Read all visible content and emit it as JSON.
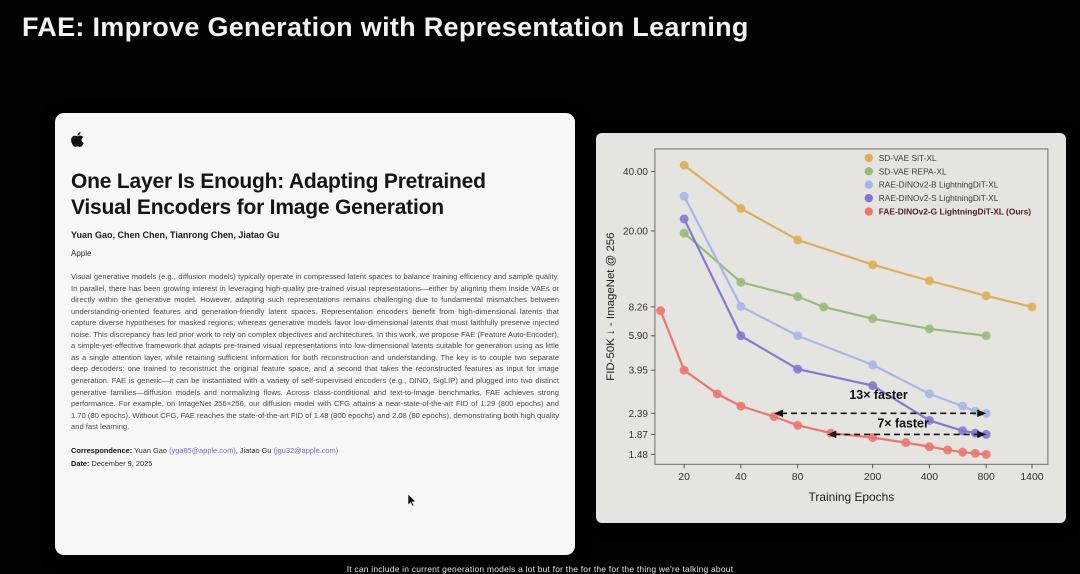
{
  "slide": {
    "title": "FAE: Improve Generation with Representation Learning",
    "caption": "It can include in current generation models a lot but for the for the for the thing we're talking about"
  },
  "paper": {
    "title": "One Layer Is Enough: Adapting Pretrained Visual Encoders for Image Generation",
    "authors": "Yuan Gao, Chen Chen, Tianrong Chen, Jiatao Gu",
    "affiliation": "Apple",
    "abstract": "Visual generative models (e.g., diffusion models) typically operate in compressed latent spaces to balance training efficiency and sample quality. In parallel, there has been growing interest in leveraging high-quality pre-trained visual representations—either by aligning them inside VAEs or directly within the generative model. However, adapting such representations remains challenging due to fundamental mismatches between understanding-oriented features and generation-friendly latent spaces. Representation encoders benefit from high-dimensional latents that capture diverse hypotheses for masked regions, whereas generative models favor low-dimensional latents that must faithfully preserve injected noise. This discrepancy has led prior work to rely on complex objectives and architectures. In this work, we propose FAE (Feature Auto-Encoder), a simple-yet-effective framework that adapts pre-trained visual representations into low-dimensional latents suitable for generation using as little as a single attention layer, while retaining sufficient information for both reconstruction and understanding. The key is to couple two separate deep decoders: one trained to reconstruct the original feature space, and a second that takes the reconstructed features as input for image generation. FAE is generic—it can be instantiated with a variety of self-supervised encoders (e.g., DINO, SigLIP) and plugged into two distinct generative families—diffusion models and normalizing flows. Across class-conditional and text-to-image benchmarks, FAE achieves strong performance. For example, on ImageNet 256×256, our diffusion model with CFG attains a near-state-of-the-art FID of 1.29 (800 epochs) and 1.70 (80 epochs). Without CFG, FAE reaches the state-of-the-art FID of 1.48 (800 epochs) and 2.08 (80 epochs), demonstrating both high quality and fast learning.",
    "correspondence_label": "Correspondence:",
    "correspondence_name1": " Yuan Gao ",
    "correspondence_email1": "(yga85@apple.com)",
    "correspondence_sep": ", ",
    "correspondence_name2": "Jiatao Gu ",
    "correspondence_email2": "(jgu32@apple.com)",
    "date_label": "Date:",
    "date_value": " December 9, 2025"
  },
  "chart_data": {
    "type": "line",
    "title": "",
    "xlabel": "Training Epochs",
    "ylabel": "FID-50K ↓ - ImageNet @ 256",
    "xscale": "log",
    "yscale": "log",
    "xlim": [
      14,
      1700
    ],
    "ylim": [
      1.32,
      52
    ],
    "xticks": [
      20,
      40,
      80,
      200,
      400,
      800,
      1400
    ],
    "xtick_labels": [
      "20",
      "40",
      "80",
      "200",
      "400",
      "800",
      "1400"
    ],
    "yticks": [
      40.0,
      20.0,
      8.26,
      5.9,
      3.95,
      2.39,
      1.87,
      1.48
    ],
    "ytick_labels": [
      "40.00",
      "20.00",
      "8.26",
      "5.90",
      "3.95",
      "2.39",
      "1.87",
      "1.48"
    ],
    "grid": false,
    "legend_position": "upper right",
    "series": [
      {
        "name": "SD-VAE SiT-XL",
        "color": "#ddab4d",
        "bold": false,
        "points": [
          [
            20,
            43
          ],
          [
            40,
            26
          ],
          [
            80,
            18
          ],
          [
            200,
            13.5
          ],
          [
            400,
            11.2
          ],
          [
            800,
            9.4
          ],
          [
            1400,
            8.26
          ]
        ]
      },
      {
        "name": "SD-VAE REPA-XL",
        "color": "#90b873",
        "bold": false,
        "points": [
          [
            20,
            19.5
          ],
          [
            40,
            11.0
          ],
          [
            80,
            9.3
          ],
          [
            110,
            8.26
          ],
          [
            200,
            7.2
          ],
          [
            400,
            6.4
          ],
          [
            800,
            5.9
          ]
        ]
      },
      {
        "name": "RAE-DINOv2-B LightningDiT-XL",
        "color": "#a2b4e8",
        "bold": false,
        "points": [
          [
            20,
            30
          ],
          [
            40,
            8.3
          ],
          [
            80,
            5.9
          ],
          [
            200,
            4.2
          ],
          [
            400,
            3.0
          ],
          [
            600,
            2.6
          ],
          [
            700,
            2.45
          ],
          [
            800,
            2.39
          ]
        ]
      },
      {
        "name": "RAE-DINOv2-S LightningDiT-XL",
        "color": "#7d6fd2",
        "bold": false,
        "points": [
          [
            20,
            23
          ],
          [
            40,
            5.9
          ],
          [
            80,
            4.0
          ],
          [
            200,
            3.3
          ],
          [
            400,
            2.2
          ],
          [
            600,
            1.95
          ],
          [
            700,
            1.9
          ],
          [
            800,
            1.87
          ]
        ]
      },
      {
        "name": "FAE-DINOv2-G LightningDiT-XL (Ours)",
        "color": "#ea6e64",
        "bold": true,
        "points": [
          [
            15,
            7.9
          ],
          [
            20,
            3.95
          ],
          [
            30,
            3.0
          ],
          [
            40,
            2.6
          ],
          [
            60,
            2.3
          ],
          [
            80,
            2.08
          ],
          [
            120,
            1.9
          ],
          [
            200,
            1.8
          ],
          [
            300,
            1.7
          ],
          [
            400,
            1.62
          ],
          [
            500,
            1.56
          ],
          [
            600,
            1.52
          ],
          [
            700,
            1.5
          ],
          [
            800,
            1.48
          ]
        ]
      }
    ],
    "annotations": [
      {
        "text": "13× faster",
        "x": 215,
        "y": 2.95,
        "arrow_y": 2.39,
        "arrow_x1": 60,
        "arrow_x2": 800
      },
      {
        "text": "7× faster",
        "x": 290,
        "y": 2.12,
        "arrow_y": 1.87,
        "arrow_x1": 115,
        "arrow_x2": 800
      }
    ]
  }
}
